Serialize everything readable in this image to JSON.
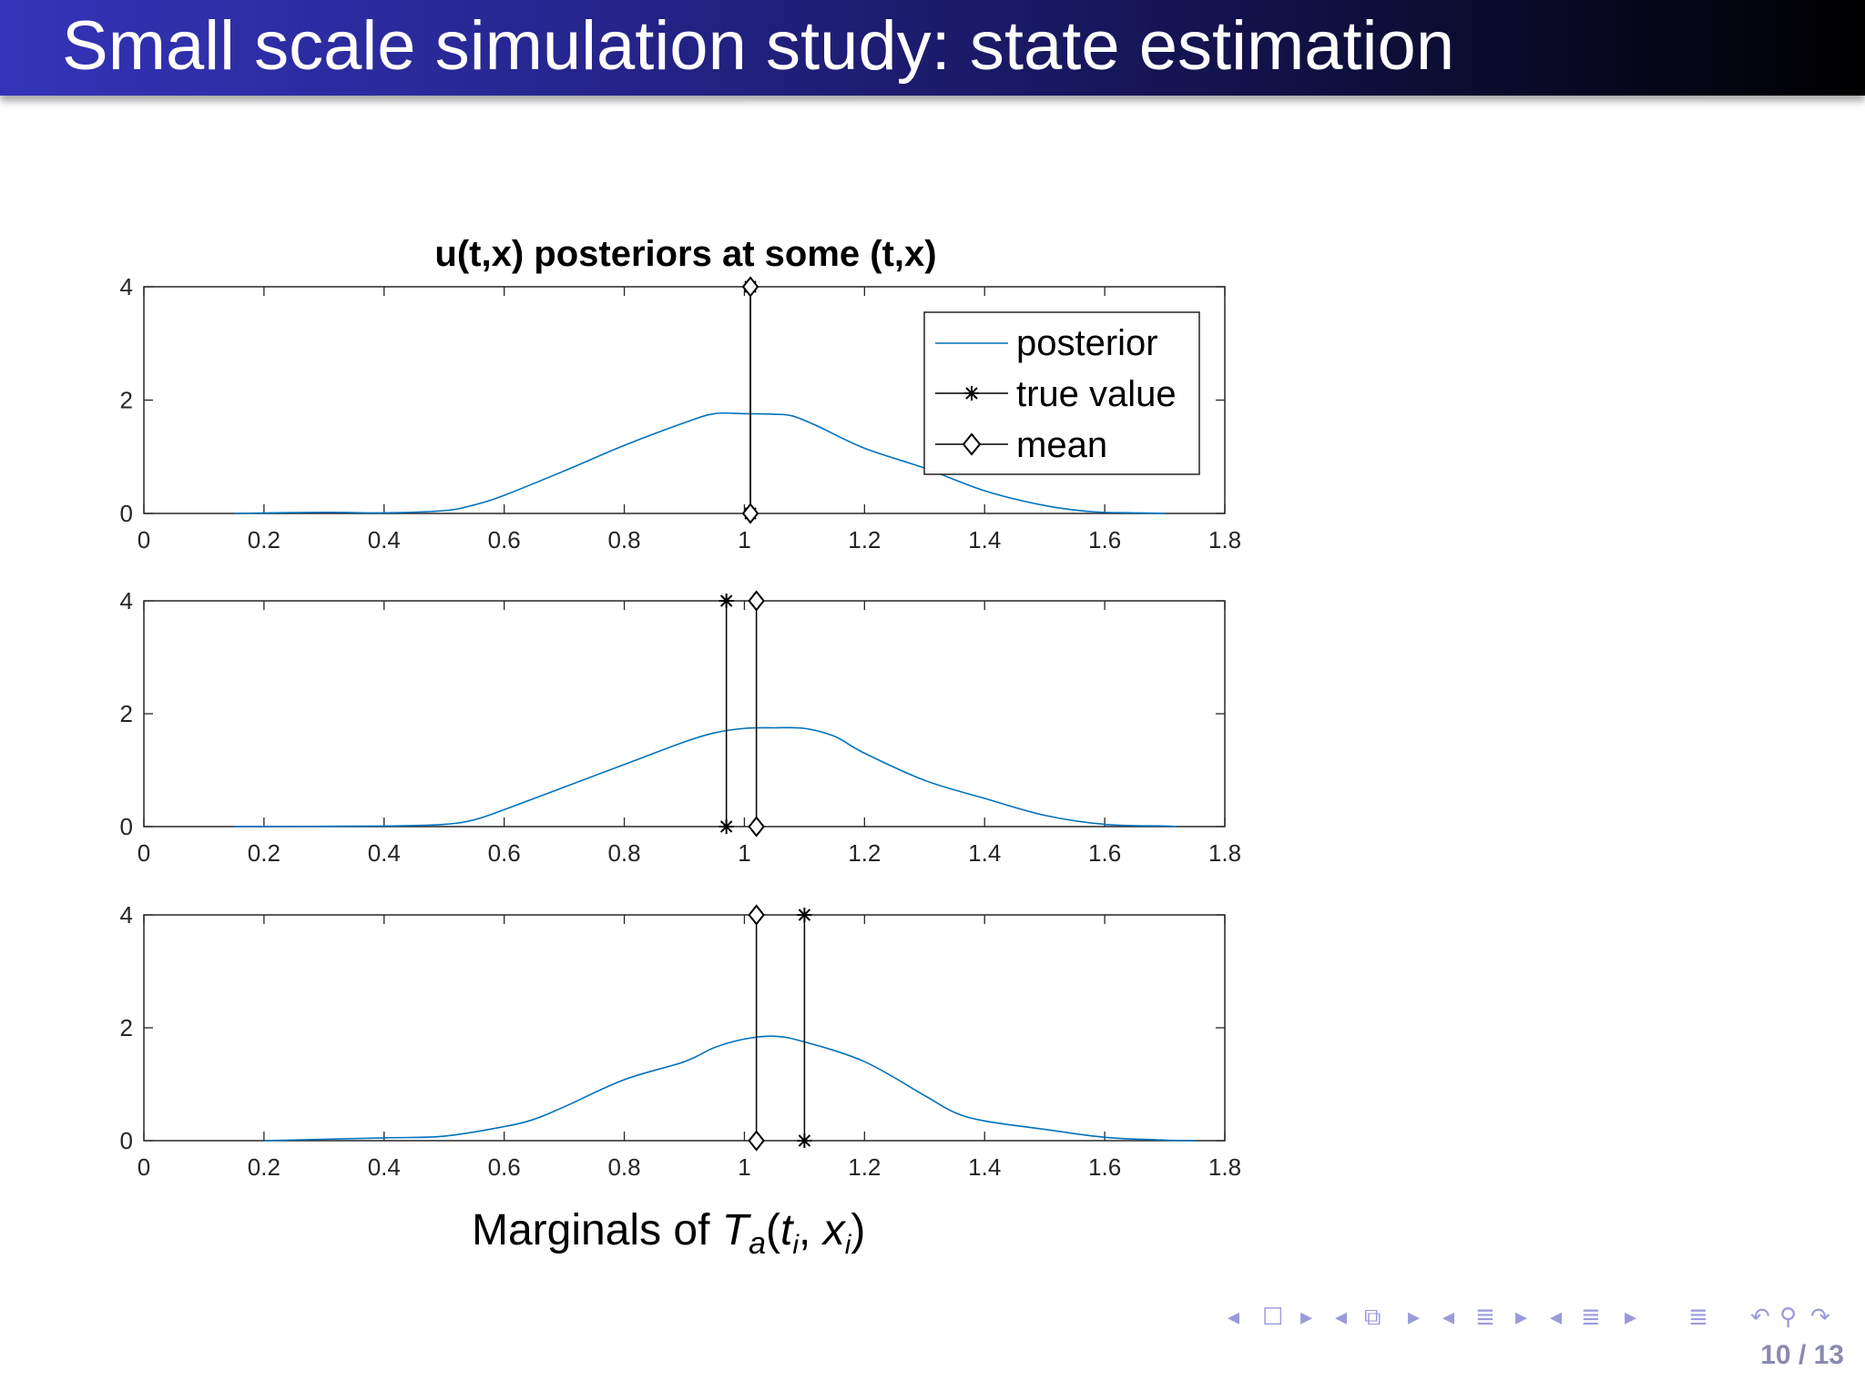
{
  "slide": {
    "title": "Small scale simulation study: state estimation",
    "page_current": "10",
    "page_total": "13",
    "page_label": "10 / 13"
  },
  "colors": {
    "title_bar_start": "#3434b8",
    "title_bar_end": "#000000",
    "posterior_line": "#0072bd",
    "markers": "#000000",
    "nav": "#9a9adc"
  },
  "navigation": {
    "icons": [
      "nav-prev-arrow",
      "nav-frame-icon",
      "nav-next-arrow",
      "nav-prev-arrow",
      "nav-subsection-icon",
      "nav-next-arrow",
      "nav-prev-arrow",
      "nav-section-icon",
      "nav-next-arrow",
      "nav-prev-arrow",
      "nav-section-align-icon",
      "nav-next-arrow",
      "nav-align-icon",
      "nav-undo-icon",
      "nav-search-icon",
      "nav-redo-icon"
    ],
    "glyphs": [
      "◂",
      "☐",
      "▸",
      "◂",
      "⧉",
      "▸",
      "◂",
      "≣",
      "▸",
      "◂",
      "≣",
      "▸",
      "≣",
      "↶",
      "⚲",
      "↷"
    ]
  },
  "chart_data": {
    "type": "line",
    "title": "u(t,x) posteriors at some (t,x)",
    "xlabel": "Marginals of T_a(t_i, x_i)",
    "xlabel_parts": {
      "prefix": "Marginals of ",
      "T": "T",
      "a": "a",
      "ti": "t",
      "i1": "i",
      "xi": "x",
      "i2": "i"
    },
    "legend": {
      "placement": "top-right of first subplot",
      "entries": [
        "posterior",
        "true value",
        "mean"
      ]
    },
    "xlim": [
      0,
      1.8
    ],
    "ylim": [
      0,
      4
    ],
    "xticks": [
      0,
      0.2,
      0.4,
      0.6,
      0.8,
      1,
      1.2,
      1.4,
      1.6,
      1.8
    ],
    "xtick_labels": [
      "0",
      "0.2",
      "0.4",
      "0.6",
      "0.8",
      "1",
      "1.2",
      "1.4",
      "1.6",
      "1.8"
    ],
    "yticks": [
      0,
      2,
      4
    ],
    "ytick_labels": [
      "0",
      "2",
      "4"
    ],
    "grid": false,
    "subplots": [
      {
        "true_value": 1.01,
        "mean": 1.01,
        "posterior": {
          "x": [
            0.15,
            0.3,
            0.4,
            0.5,
            0.55,
            0.6,
            0.7,
            0.8,
            0.9,
            0.95,
            1.0,
            1.05,
            1.08,
            1.12,
            1.2,
            1.3,
            1.4,
            1.5,
            1.58,
            1.65,
            1.7
          ],
          "y": [
            0,
            0.02,
            0.01,
            0.05,
            0.15,
            0.32,
            0.75,
            1.2,
            1.6,
            1.76,
            1.76,
            1.75,
            1.72,
            1.55,
            1.15,
            0.8,
            0.4,
            0.14,
            0.03,
            0.01,
            0
          ]
        }
      },
      {
        "true_value": 0.97,
        "mean": 1.02,
        "posterior": {
          "x": [
            0.15,
            0.4,
            0.5,
            0.55,
            0.6,
            0.7,
            0.8,
            0.9,
            0.95,
            1.0,
            1.05,
            1.1,
            1.15,
            1.2,
            1.3,
            1.4,
            1.5,
            1.6,
            1.7,
            1.72
          ],
          "y": [
            0,
            0.01,
            0.04,
            0.12,
            0.3,
            0.7,
            1.1,
            1.5,
            1.66,
            1.74,
            1.75,
            1.74,
            1.6,
            1.3,
            0.82,
            0.5,
            0.2,
            0.04,
            0.01,
            0
          ]
        }
      },
      {
        "true_value": 1.1,
        "mean": 1.02,
        "posterior": {
          "x": [
            0.2,
            0.4,
            0.5,
            0.6,
            0.65,
            0.7,
            0.8,
            0.9,
            0.95,
            1.0,
            1.05,
            1.1,
            1.2,
            1.3,
            1.35,
            1.4,
            1.5,
            1.6,
            1.7,
            1.75
          ],
          "y": [
            0,
            0.05,
            0.08,
            0.25,
            0.38,
            0.6,
            1.08,
            1.4,
            1.65,
            1.8,
            1.85,
            1.75,
            1.4,
            0.8,
            0.5,
            0.35,
            0.2,
            0.06,
            0.01,
            0
          ]
        }
      }
    ]
  }
}
